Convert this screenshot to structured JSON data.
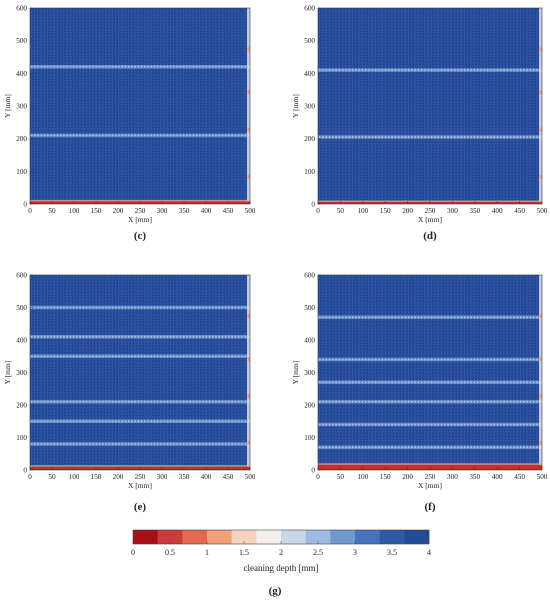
{
  "chart_data": {
    "type": "heatmap",
    "panels": [
      {
        "label": "(c)",
        "xlabel": "X [mm]",
        "ylabel": "Y [mm]",
        "xlim": [
          0,
          500
        ],
        "ylim": [
          0,
          600
        ],
        "xticks": [
          0,
          50,
          100,
          150,
          200,
          250,
          300,
          350,
          400,
          450,
          500
        ],
        "yticks": [
          0,
          100,
          200,
          300,
          400,
          500,
          600
        ],
        "stripe_count": 68,
        "overlap_bands_y": [
          420,
          210
        ],
        "bottom_low_band_mm": 8,
        "colors": [
          "#1f3f8c",
          "#2c58a8",
          "#e34a33",
          "#c92a2a"
        ]
      },
      {
        "label": "(d)",
        "xlabel": "X [mm]",
        "ylabel": "Y [mm]",
        "xlim": [
          0,
          500
        ],
        "ylim": [
          0,
          600
        ],
        "xticks": [
          0,
          50,
          100,
          150,
          200,
          250,
          300,
          350,
          400,
          450,
          500
        ],
        "yticks": [
          0,
          100,
          200,
          300,
          400,
          500,
          600
        ],
        "stripe_count": 68,
        "overlap_bands_y": [
          410,
          205
        ],
        "bottom_low_band_mm": 6,
        "colors": [
          "#1f3f8c",
          "#2c58a8",
          "#e34a33",
          "#c92a2a"
        ]
      },
      {
        "label": "(e)",
        "xlabel": "X [mm]",
        "ylabel": "Y [mm]",
        "xlim": [
          0,
          500
        ],
        "ylim": [
          0,
          600
        ],
        "xticks": [
          0,
          50,
          100,
          150,
          200,
          250,
          300,
          350,
          400,
          450,
          500
        ],
        "yticks": [
          0,
          100,
          200,
          300,
          400,
          500,
          600
        ],
        "stripe_count": 68,
        "overlap_bands_y": [
          500,
          350,
          410,
          210,
          150,
          80
        ],
        "bottom_low_band_mm": 10,
        "colors": [
          "#1f3f8c",
          "#2c58a8",
          "#e34a33",
          "#c92a2a"
        ]
      },
      {
        "label": "(f)",
        "xlabel": "X [mm]",
        "ylabel": "Y [mm]",
        "xlim": [
          0,
          500
        ],
        "ylim": [
          0,
          600
        ],
        "xticks": [
          0,
          50,
          100,
          150,
          200,
          250,
          300,
          350,
          400,
          450,
          500
        ],
        "yticks": [
          0,
          100,
          200,
          300,
          400,
          500,
          600
        ],
        "stripe_count": 68,
        "overlap_bands_y": [
          470,
          340,
          270,
          210,
          140,
          70
        ],
        "bottom_low_band_mm": 16,
        "colors": [
          "#1f3f8c",
          "#2c58a8",
          "#e34a33",
          "#c92a2a"
        ]
      }
    ],
    "colorbar": {
      "label": "cleaning depth [mm]",
      "ticks": [
        "0",
        "0.5",
        "1",
        "1.5",
        "2",
        "2.5",
        "3",
        "3.5",
        "4"
      ],
      "range": [
        0,
        4
      ],
      "colors": [
        "#a50f15",
        "#cb3b3b",
        "#e36a4f",
        "#f2a07a",
        "#f8d3bd",
        "#f5f0ed",
        "#c8d7ea",
        "#9dbce0",
        "#6f9ad0",
        "#4474bb",
        "#2d5aa6",
        "#224b96"
      ]
    },
    "caption": "(g)"
  }
}
